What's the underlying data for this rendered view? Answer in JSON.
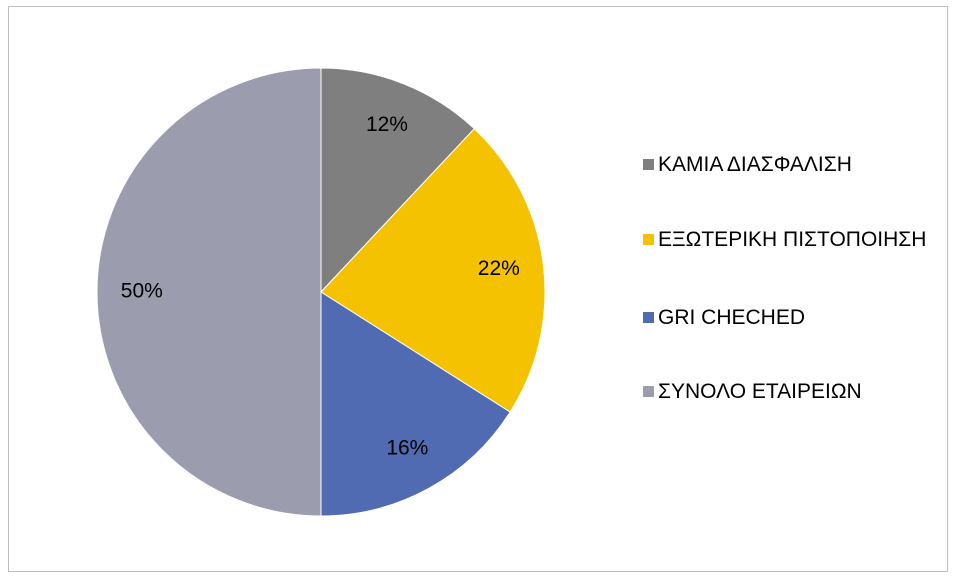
{
  "chart_data": {
    "type": "pie",
    "categories": [
      "ΚΑΜΙΑ ΔΙΑΣΦΑΛΙΣΗ",
      "ΕΞΩΤΕΡΙΚΗ ΠΙΣΤΟΠΟΙΗΣΗ",
      "GRI CHECHED",
      "ΣΥΝΟΛΟ ΕΤΑΙΡΕΙΩΝ"
    ],
    "values": [
      12,
      22,
      16,
      50
    ],
    "value_labels": [
      "12%",
      "22%",
      "16%",
      "50%"
    ],
    "colors": [
      "#7f7f7f",
      "#f4c200",
      "#516bb2",
      "#9b9dae"
    ],
    "legend": "right"
  }
}
